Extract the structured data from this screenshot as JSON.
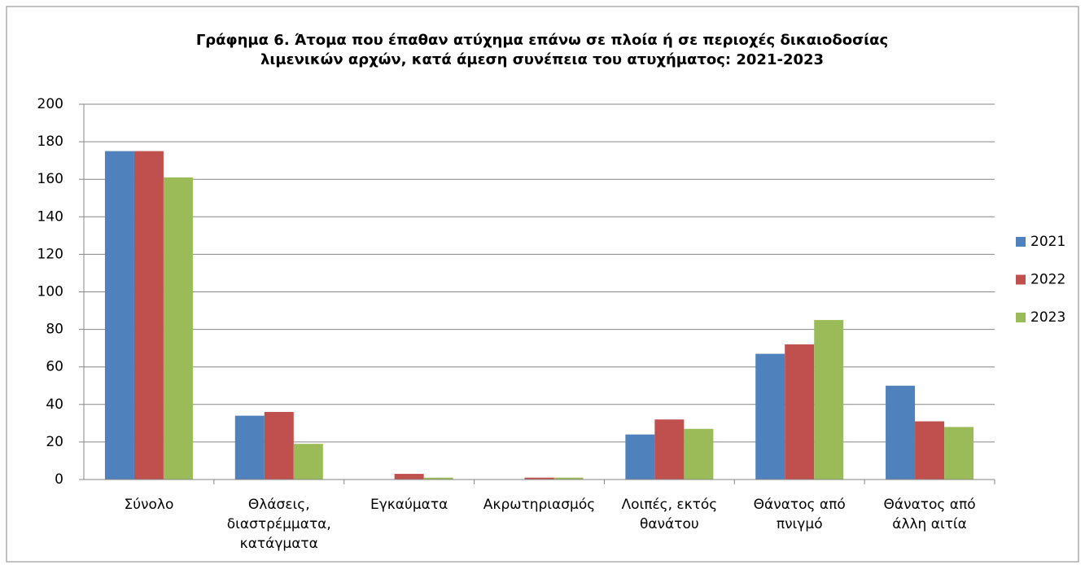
{
  "chart_data": {
    "type": "bar",
    "title": "Γράφημα 6. Άτομα που έπαθαν ατύχημα επάνω σε πλοία ή σε περιοχές δικαιοδοσίας\nλιμενικών αρχών, κατά άμεση συνέπεια του ατυχήματος: 2021-2023",
    "categories": [
      "Σύνολο",
      "Θλάσεις,\nδιαστρέμματα,\nκατάγματα",
      "Εγκαύματα",
      "Ακρωτηριασμός",
      "Λοιπές, εκτός\nθανάτου",
      "Θάνατος από\nπνιγμό",
      "Θάνατος από\nάλλη αιτία"
    ],
    "series": [
      {
        "name": "2021",
        "color": "#4f81bd",
        "values": [
          175,
          34,
          0,
          0,
          24,
          67,
          50
        ]
      },
      {
        "name": "2022",
        "color": "#c0504d",
        "values": [
          175,
          36,
          3,
          1,
          32,
          72,
          31
        ]
      },
      {
        "name": "2023",
        "color": "#9bbb59",
        "values": [
          161,
          19,
          1,
          1,
          27,
          85,
          28
        ]
      }
    ],
    "ylim": [
      0,
      200
    ],
    "yticks": [
      0,
      20,
      40,
      60,
      80,
      100,
      120,
      140,
      160,
      180,
      200
    ],
    "grid": true,
    "legend": "right"
  }
}
